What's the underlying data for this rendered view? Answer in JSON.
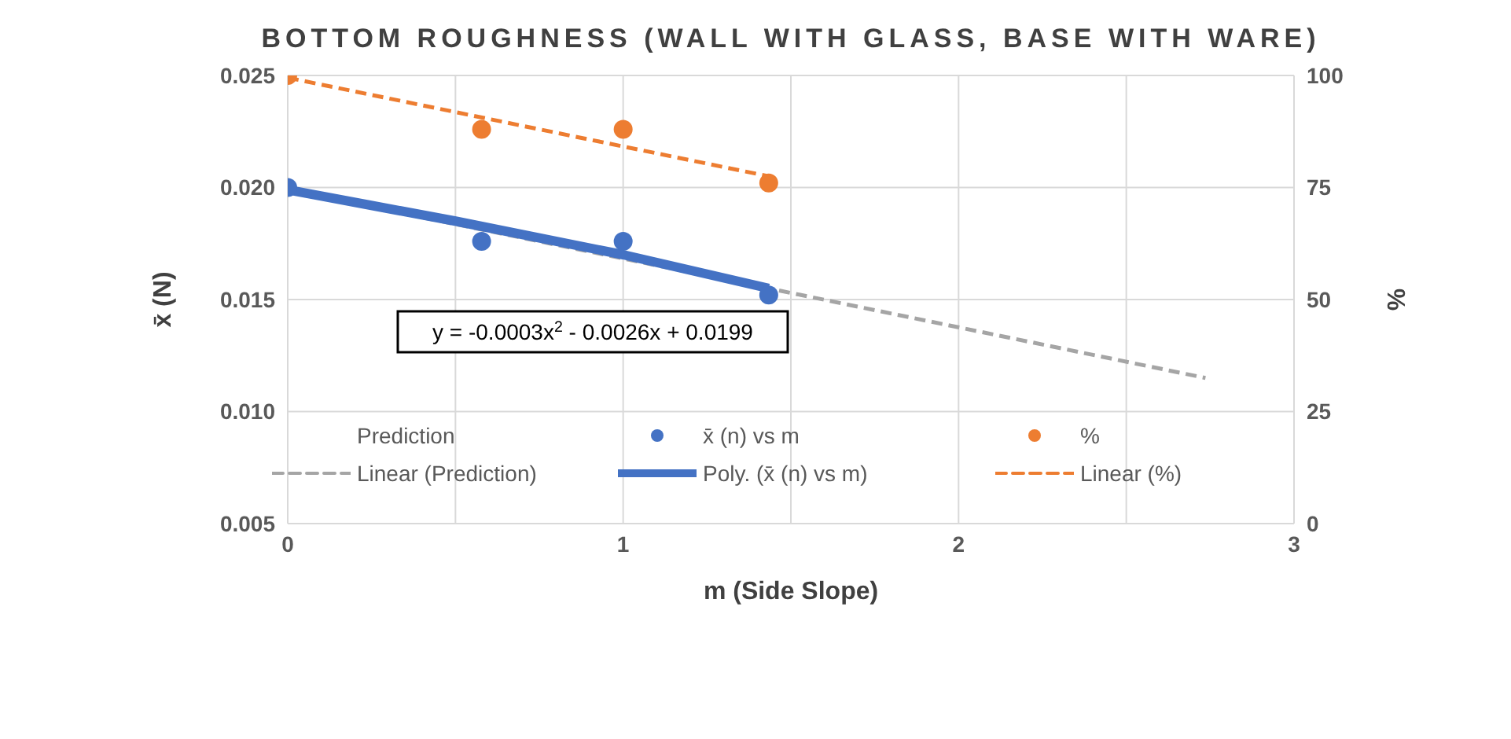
{
  "chart_data": {
    "type": "scatter",
    "title": "BOTTOM ROUGHNESS (WALL WITH GLASS, BASE WITH WARE)",
    "xlabel": "m (Side Slope)",
    "ylabel": "x̄ (N)",
    "y2label": "%",
    "xlim": [
      0,
      3
    ],
    "xticks": [
      0,
      {
        "value": 0.5,
        "label": null
      },
      1,
      {
        "value": 1.5,
        "label": null
      },
      2,
      {
        "value": 2.5,
        "label": null
      },
      3
    ],
    "ylim": [
      0.005,
      0.025
    ],
    "yticks": [
      0.005,
      {
        "value": 0.01,
        "label": "0.010"
      },
      0.015,
      {
        "value": 0.02,
        "label": "0.020"
      },
      0.025
    ],
    "y2lim": [
      0,
      100
    ],
    "y2ticks": [
      0,
      25,
      50,
      75,
      100
    ],
    "grid": true,
    "legend": "bottom",
    "annotations": [
      "y = -0.0003x$^{2}$ - 0.0026x + 0.0199"
    ],
    "series": [
      {
        "name": "Prediction",
        "marker": "none"
      },
      {
        "name": "x̄ (n)  vs m",
        "marker": "circle",
        "color": "#4472c4",
        "x": [
          0,
          0.578,
          1,
          1.434
        ],
        "values": [
          0.02,
          0.0176,
          0.0176,
          0.0152
        ]
      },
      {
        "name": "%",
        "marker": "circle",
        "color": "#ed7d31",
        "axis": "y2",
        "x": [
          0,
          0.578,
          1,
          1.434
        ],
        "values": [
          100,
          88,
          88,
          76
        ]
      },
      {
        "name": "Linear (Prediction)",
        "type": "line",
        "marker": "none",
        "line_style": "dashed",
        "color": "#a5a5a5",
        "x": [
          0,
          2.736
        ],
        "values": [
          0.0199,
          0.0115
        ]
      },
      {
        "name": "Poly. (x̄ (n)  vs m)",
        "type": "line",
        "marker": "none",
        "line_style": "solid",
        "color": "#4472c4",
        "x": [
          0,
          0.5,
          1,
          1.434
        ],
        "values": [
          0.0199,
          0.0185,
          0.017,
          0.0155
        ]
      },
      {
        "name": "Linear (%)",
        "type": "line",
        "marker": "none",
        "line_style": "dashed",
        "color": "#ed7d31",
        "axis": "y2",
        "x": [
          0,
          1.434
        ],
        "values": [
          99.5,
          77.5
        ]
      }
    ]
  }
}
